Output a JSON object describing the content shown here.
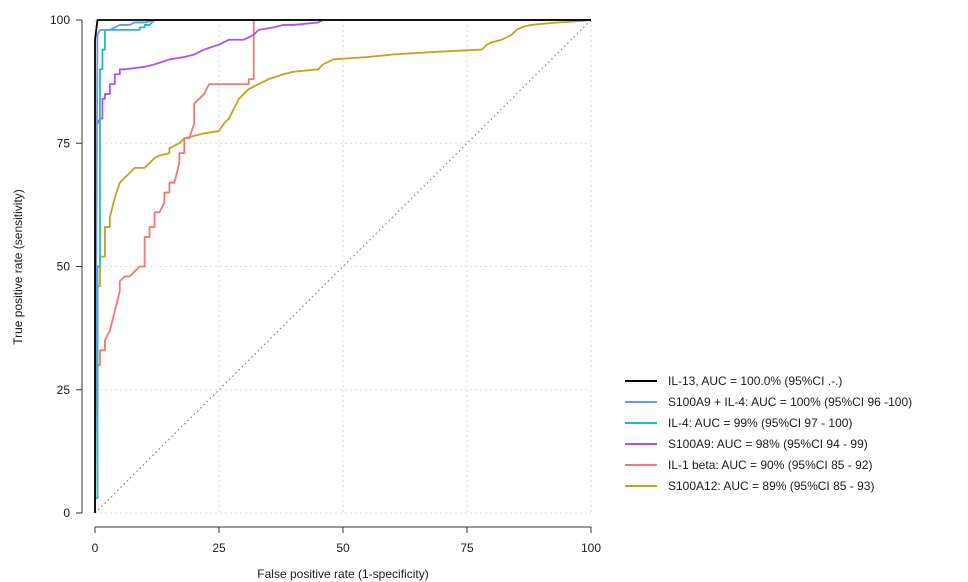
{
  "chart_data": {
    "type": "line",
    "title": "",
    "xlabel": "False positive rate (1-specificity)",
    "ylabel": "True positive rate (sensitivity)",
    "xlim": [
      0,
      100
    ],
    "ylim": [
      0,
      100
    ],
    "xticks": [
      "0",
      "25",
      "50",
      "75",
      "100"
    ],
    "yticks": [
      "0",
      "25",
      "50",
      "75",
      "100"
    ],
    "grid": true,
    "legend_position": "right",
    "reference_line": {
      "x": [
        0,
        100
      ],
      "y": [
        0,
        100
      ],
      "style": "dotted"
    },
    "series": [
      {
        "name": "IL-13, AUC = 100.0% (95%CI .-.)",
        "color": "#000000",
        "x": [
          0,
          0,
          0.5,
          1,
          100
        ],
        "y": [
          0,
          96,
          100,
          100,
          100
        ]
      },
      {
        "name": "S100A9 + IL-4: AUC = 100% (95%CI 96 -100)",
        "color": "#6699ee",
        "x": [
          0,
          0.5,
          1,
          2,
          3,
          4,
          5,
          7,
          8,
          10,
          12,
          100
        ],
        "y": [
          0,
          97,
          98,
          98,
          98,
          98.5,
          99,
          99,
          99.5,
          99.5,
          100,
          100
        ]
      },
      {
        "name": "IL-4: AUC = 99% (95%CI 97 - 100)",
        "color": "#22bbbb",
        "x": [
          0,
          0.5,
          0.5,
          1,
          1,
          1.5,
          1.5,
          2,
          2,
          4,
          9,
          9,
          10,
          10,
          11,
          12,
          32,
          100
        ],
        "y": [
          3,
          3,
          50,
          50,
          90,
          90,
          94,
          94,
          98,
          98,
          98,
          98.5,
          98.5,
          99,
          99,
          100,
          100,
          100
        ]
      },
      {
        "name": "S100A9: AUC = 98% (95%CI 94 - 99)",
        "color": "#b54fea",
        "x": [
          0,
          0.5,
          1,
          1.5,
          1.5,
          2,
          2,
          3,
          3,
          4,
          4,
          5,
          5,
          6,
          10,
          12,
          15,
          18,
          20,
          22,
          25,
          27,
          30,
          32,
          33,
          36,
          38,
          40,
          45,
          46,
          100
        ],
        "y": [
          79,
          79,
          80,
          80,
          84,
          84,
          85,
          85,
          87,
          87,
          89,
          89,
          90,
          90,
          90.5,
          91,
          92,
          92.5,
          93,
          94,
          95,
          96,
          96,
          97,
          98,
          98.5,
          99,
          99,
          99.5,
          100,
          100
        ]
      },
      {
        "name": "IL-1 beta: AUC = 90% (95%CI 85 - 92)",
        "color": "#f07878",
        "x": [
          0,
          0.5,
          0.5,
          1,
          1,
          2,
          2,
          3,
          4,
          5,
          5,
          6,
          7,
          8,
          9,
          10,
          10,
          11,
          11,
          12,
          12,
          13,
          14,
          14,
          15,
          15,
          16,
          17,
          17,
          18,
          18,
          19,
          20,
          20,
          22,
          23,
          31,
          31,
          32,
          32,
          100
        ],
        "y": [
          20,
          20,
          30,
          30,
          33,
          33,
          35,
          37,
          41,
          45,
          47,
          48,
          48,
          49,
          50,
          50,
          56,
          56,
          58,
          58,
          61,
          61,
          63,
          65,
          65,
          67,
          67,
          71,
          73,
          73,
          76,
          76,
          79,
          83,
          85,
          87,
          87,
          88,
          88,
          100,
          100
        ]
      },
      {
        "name": "S100A12: AUC = 89% (95%CI 85 - 93)",
        "color": "#c8a020",
        "x": [
          0,
          0.5,
          0.5,
          1,
          1,
          2,
          2,
          3,
          3,
          4,
          5,
          6,
          7,
          8,
          10,
          11,
          12,
          13,
          15,
          15,
          17,
          18,
          20,
          22,
          25,
          26,
          27,
          28,
          29,
          30,
          31,
          32,
          33,
          35,
          38,
          40,
          45,
          46,
          48,
          55,
          60,
          68,
          78,
          79,
          80,
          82,
          83,
          84,
          85,
          86,
          87,
          88,
          90,
          92,
          95,
          98,
          100
        ],
        "y": [
          20,
          20,
          46,
          46,
          52,
          52,
          58,
          58,
          60,
          64,
          67,
          68,
          69,
          70,
          70,
          71,
          72,
          72.5,
          73,
          74,
          75,
          76,
          76.5,
          77,
          77.5,
          79,
          80,
          82,
          84,
          85,
          86,
          86.5,
          87,
          88,
          89,
          89.5,
          90,
          91,
          92,
          92.5,
          93,
          93.5,
          94,
          95,
          95.5,
          96,
          96.5,
          97,
          98,
          98.5,
          98.8,
          99,
          99.2,
          99.4,
          99.6,
          99.8,
          100
        ]
      }
    ]
  }
}
